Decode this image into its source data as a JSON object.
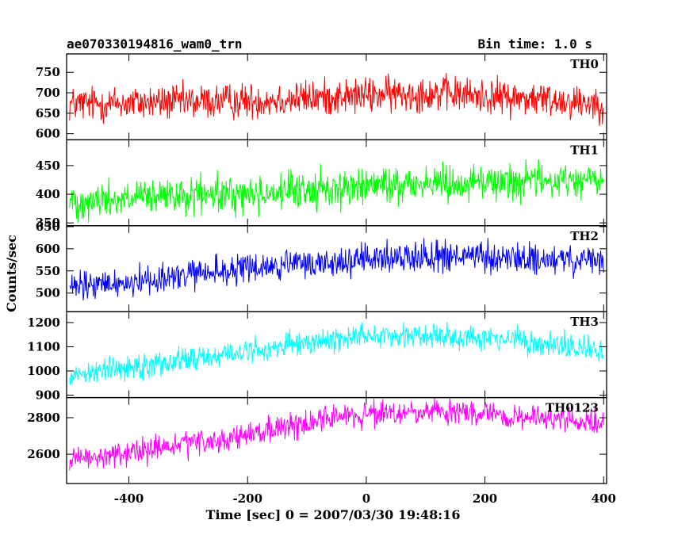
{
  "header": {
    "left_title": "ae070330194816_wam0_trn",
    "right_title": "Bin time: 1.0 s"
  },
  "chart_data": {
    "type": "line",
    "title": "ae070330194816_wam0_trn",
    "subtitle": "Bin time: 1.0 s",
    "xlabel": "Time [sec] 0 = 2007/03/30 19:48:16",
    "ylabel": "Counts/sec",
    "xlim": [
      -505,
      405
    ],
    "x_ticks": [
      -400,
      -200,
      0,
      200,
      400
    ],
    "x_range": [
      -500,
      400
    ],
    "x_step": 1,
    "panels": [
      {
        "name": "TH0",
        "color": "#ff0000",
        "ylim": [
          585,
          795
        ],
        "y_ticks": [
          600,
          650,
          700,
          750
        ],
        "trend": [
          [
            -500,
            672
          ],
          [
            -200,
            680
          ],
          [
            100,
            700
          ],
          [
            400,
            675
          ]
        ],
        "noise_amplitude": 38
      },
      {
        "name": "TH1",
        "color": "#00ff00",
        "ylim": [
          345,
          495
        ],
        "y_ticks": [
          350,
          400,
          450
        ],
        "trend": [
          [
            -500,
            388
          ],
          [
            -200,
            400
          ],
          [
            100,
            420
          ],
          [
            400,
            425
          ]
        ],
        "noise_amplitude": 28
      },
      {
        "name": "TH2",
        "color": "#0000ff",
        "ylim": [
          458,
          652
        ],
        "y_ticks": [
          500,
          550,
          600,
          650
        ],
        "trend": [
          [
            -500,
            510
          ],
          [
            -200,
            555
          ],
          [
            100,
            585
          ],
          [
            400,
            570
          ]
        ],
        "noise_amplitude": 30
      },
      {
        "name": "TH3",
        "color": "#00ffff",
        "ylim": [
          890,
          1245
        ],
        "y_ticks": [
          900,
          1000,
          1100,
          1200
        ],
        "trend": [
          [
            -500,
            985
          ],
          [
            -200,
            1080
          ],
          [
            0,
            1150
          ],
          [
            200,
            1140
          ],
          [
            400,
            1080
          ]
        ],
        "noise_amplitude": 45
      },
      {
        "name": "TH0123",
        "color": "#ff00ff",
        "ylim": [
          2440,
          2910
        ],
        "y_ticks": [
          2600,
          2800
        ],
        "trend": [
          [
            -500,
            2560
          ],
          [
            -200,
            2700
          ],
          [
            -50,
            2810
          ],
          [
            150,
            2830
          ],
          [
            400,
            2770
          ]
        ],
        "noise_amplitude": 60
      }
    ]
  }
}
